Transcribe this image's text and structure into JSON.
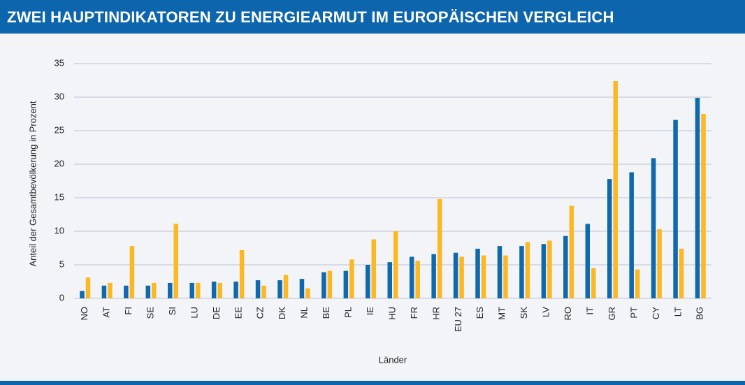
{
  "chart_data": {
    "type": "bar",
    "title": "ZWEI HAUPTINDIKATOREN ZU ENERGIEARMUT IM EUROPÄISCHEN VERGLEICH",
    "x_label": "Länder",
    "y_label": "Anteil der Gesamtbevölkerung in Prozent",
    "categories": [
      "NO",
      "AT",
      "FI",
      "SE",
      "SI",
      "LU",
      "DE",
      "EE",
      "CZ",
      "DK",
      "NL",
      "BE",
      "PL",
      "IE",
      "HU",
      "FR",
      "HR",
      "EU 27",
      "ES",
      "MT",
      "SK",
      "LV",
      "RO",
      "IT",
      "GR",
      "PT",
      "CY",
      "LT",
      "BG"
    ],
    "series": [
      {
        "color": "#0f69ae",
        "values": [
          1.1,
          1.9,
          1.9,
          1.9,
          2.3,
          2.3,
          2.5,
          2.5,
          2.7,
          2.7,
          2.9,
          3.9,
          4.1,
          5.0,
          5.4,
          6.2,
          6.6,
          6.8,
          7.4,
          7.8,
          7.8,
          8.1,
          9.3,
          11.1,
          17.8,
          18.8,
          20.9,
          26.6,
          29.9
        ]
      },
      {
        "color": "#fbb824",
        "values": [
          3.1,
          2.3,
          7.8,
          2.3,
          11.1,
          2.3,
          2.3,
          7.2,
          1.9,
          3.5,
          1.5,
          4.1,
          5.8,
          8.8,
          10.0,
          5.6,
          14.8,
          6.2,
          6.4,
          6.4,
          8.4,
          8.6,
          13.8,
          4.5,
          32.4,
          4.3,
          10.3,
          7.4,
          27.5
        ]
      }
    ],
    "ylim": [
      0,
      35
    ],
    "yticks": [
      0,
      5,
      10,
      15,
      20,
      25,
      30,
      35
    ],
    "grid": true
  }
}
